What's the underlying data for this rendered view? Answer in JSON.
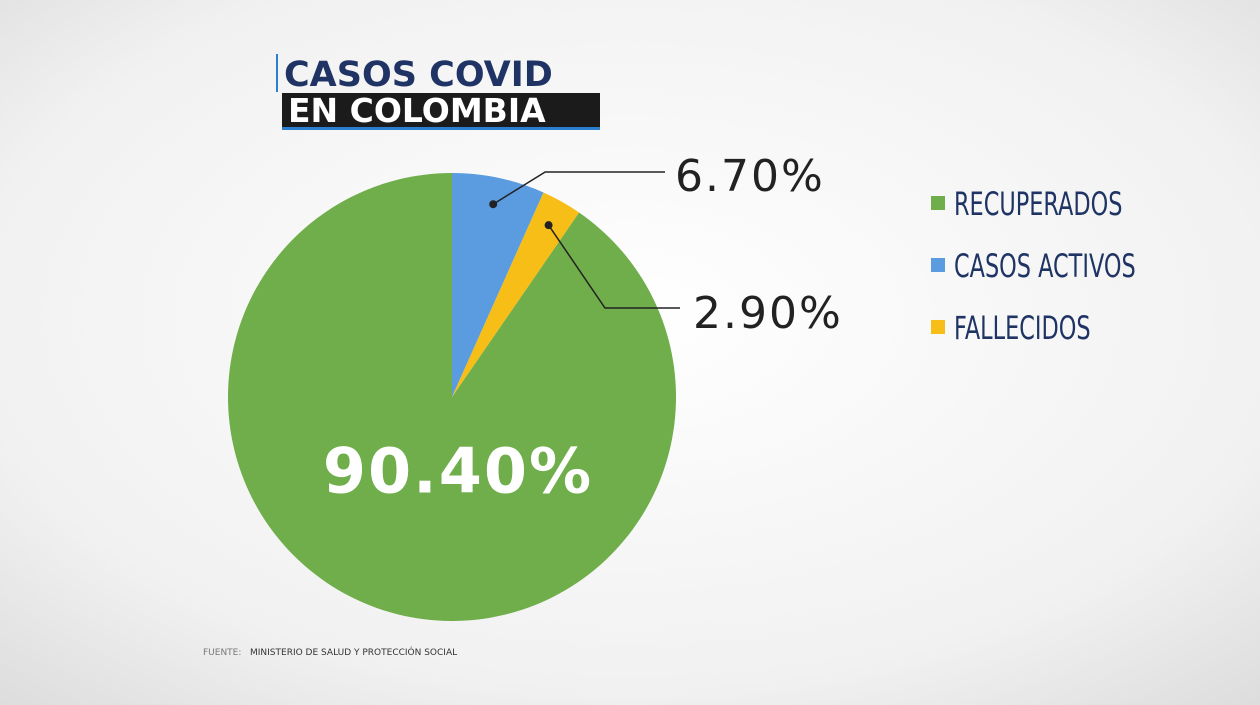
{
  "chart_data": {
    "type": "pie",
    "title": "CASOS COVID",
    "subtitle": "EN COLOMBIA",
    "categories": [
      "RECUPERADOS",
      "CASOS ACTIVOS",
      "FALLECIDOS"
    ],
    "values": [
      90.4,
      6.7,
      2.9
    ],
    "value_labels": [
      "90.40%",
      "6.70%",
      "2.90%"
    ],
    "colors": [
      "#6fae4a",
      "#5b9be0",
      "#f6be16"
    ],
    "legend": "right",
    "source_label": "FUENTE:",
    "source": "MINISTERIO DE SALUD Y PROTECCIÓN SOCIAL"
  }
}
